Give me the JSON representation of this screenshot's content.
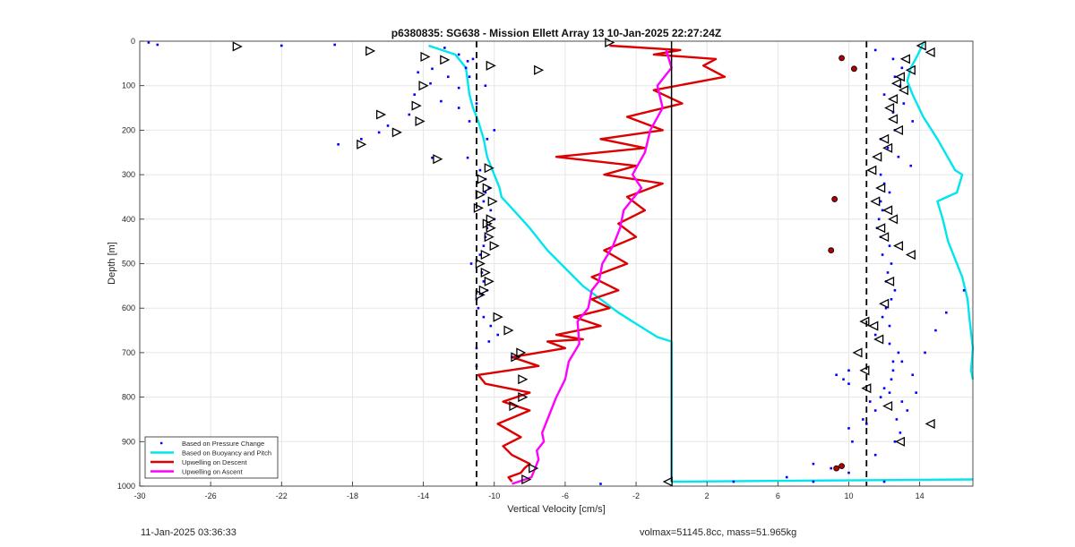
{
  "footer": {
    "timestamp": "11-Jan-2025 03:36:33",
    "volmax_mass": "volmax=51145.8cc, mass=51.965kg"
  },
  "chart_data": {
    "type": "line",
    "title": "p6380835: SG638 - Mission Ellett Array 13 10-Jan-2025 22:27:24Z",
    "xlabel": "Vertical Velocity [cm/s]",
    "ylabel": "Depth [m]",
    "xlim": [
      -30,
      17
    ],
    "ylim": [
      0,
      1000
    ],
    "y_reversed": true,
    "grid": true,
    "xticks": [
      -30,
      -26,
      -22,
      -18,
      -14,
      -10,
      -6,
      -2,
      2,
      6,
      10,
      14
    ],
    "yticks": [
      0,
      100,
      200,
      300,
      400,
      500,
      600,
      700,
      800,
      900,
      1000
    ],
    "legend": {
      "placement": "bottom-left",
      "entries": [
        "Based on Pressure Change",
        "Based on Buoyancy and Pitch",
        "Upwelling on Descent",
        "Upwelling on Ascent"
      ]
    },
    "colors": {
      "pressure": "#0000ff",
      "buoyancy": "#00e5ee",
      "descent": "#dd0000",
      "ascent": "#ff00ff",
      "reference": "#000000"
    },
    "reference_lines": {
      "dashed_x": [
        -11,
        11
      ],
      "solid_x": 0,
      "solid_to_depth": 990
    },
    "series": [
      {
        "name": "Based on Buoyancy and Pitch",
        "style": "line",
        "color": "#00e5ee",
        "x": [
          -13.7,
          -12.2,
          -11.6,
          -11.5,
          -11.4,
          -11.2,
          -10.9,
          -10.6,
          -10.4,
          -10.0,
          -9.7,
          -9.6,
          -8.9,
          -8.0,
          -7.0,
          -6.0,
          -5.0,
          -4.0,
          -3.0,
          -1.8,
          -0.8,
          0,
          0,
          0,
          0,
          17
        ],
        "y": [
          10,
          30,
          60,
          90,
          120,
          150,
          180,
          220,
          260,
          300,
          330,
          350,
          380,
          420,
          470,
          510,
          550,
          580,
          610,
          640,
          665,
          675,
          800,
          980,
          990,
          985
        ]
      },
      {
        "name": "Based on Buoyancy and Pitch (ascent)",
        "style": "line",
        "color": "#00e5ee",
        "x": [
          14.2,
          13.9,
          13.5,
          13.3,
          13.6,
          14.2,
          15.0,
          16.0,
          16.4,
          16.1,
          15.0,
          15.3,
          15.6,
          16.0,
          16.4,
          16.7,
          16.8,
          17.0,
          16.9,
          17.0
        ],
        "y": [
          5,
          30,
          60,
          90,
          120,
          170,
          220,
          290,
          300,
          340,
          360,
          400,
          450,
          490,
          530,
          580,
          620,
          690,
          740,
          760
        ]
      },
      {
        "name": "Upwelling on Descent",
        "style": "line",
        "color": "#dd0000",
        "x": [
          -3.5,
          0.5,
          -1.0,
          2.5,
          1.8,
          3.0,
          -1.0,
          0.6,
          -2.5,
          -0.5,
          -4.0,
          -1.5,
          -6.5,
          -2.0,
          -3.8,
          -0.5,
          -2.5,
          -1.5,
          -3.0,
          -2.0,
          -3.8,
          -2.5,
          -4.5,
          -3.0,
          -4.5,
          -3.5,
          -5.5,
          -4.0,
          -6.5,
          -5.0,
          -7.0,
          -6.0,
          -9.0,
          -7.5,
          -10.9,
          -10.5,
          -8.0,
          -9.5,
          -8.0,
          -9.8,
          -8.5,
          -9.5,
          -9.0,
          -8.0,
          -8.3,
          -8.5,
          -9.2,
          -9.0
        ],
        "y": [
          10,
          20,
          30,
          40,
          55,
          80,
          110,
          140,
          170,
          200,
          220,
          240,
          260,
          280,
          300,
          320,
          350,
          380,
          410,
          440,
          470,
          500,
          530,
          560,
          580,
          600,
          620,
          640,
          660,
          670,
          675,
          690,
          710,
          730,
          750,
          770,
          790,
          810,
          830,
          860,
          890,
          910,
          930,
          950,
          960,
          970,
          980,
          990
        ]
      },
      {
        "name": "Upwelling on Ascent",
        "style": "line",
        "color": "#ff00ff",
        "x": [
          -0.3,
          0.0,
          -0.8,
          -0.5,
          -1.2,
          -1.5,
          -2.2,
          -1.7,
          -2.7,
          -2.9,
          -3.3,
          -3.9,
          -4.1,
          -4.5,
          -4.7,
          -5.3,
          -5.2,
          -5.8,
          -6.0,
          -6.5,
          -6.9,
          -7.3,
          -7.2,
          -7.6,
          -7.5,
          -7.7,
          -7.9,
          -9.0
        ],
        "y": [
          20,
          60,
          100,
          150,
          200,
          250,
          300,
          330,
          380,
          420,
          460,
          500,
          540,
          560,
          600,
          630,
          680,
          720,
          760,
          800,
          840,
          880,
          900,
          920,
          940,
          960,
          980,
          995
        ]
      },
      {
        "name": "Based on Pressure Change",
        "style": "markers",
        "color": "#0000ff",
        "x": [
          -29.5,
          -29.0,
          -22.0,
          -19.0,
          -12.8,
          -12.0,
          -11.5,
          -13.5,
          -14.3,
          -12.6,
          -13.6,
          -12.0,
          -14.5,
          -13.0,
          -12.0,
          -14.8,
          -16.0,
          -16.5,
          -17.5,
          -18.8,
          -13.5,
          -11.2,
          -11.6,
          -11.4,
          -10.5,
          -11.0,
          -11.4,
          -10.0,
          -10.4,
          -11.5,
          -10.8,
          -10.5,
          -10.3,
          -10.5,
          -10.6,
          -10.2,
          -10.0,
          -10.4,
          -10.5,
          -10.6,
          -10.8,
          -11.3,
          -10.7,
          -10.6,
          -10.4,
          -10.7,
          -11.0,
          -10.9,
          -10.6,
          -10.2,
          -9.8,
          -10.3,
          -11.0,
          -9.0,
          -11.0,
          11.5,
          12.5,
          13.0,
          12.6,
          12.9,
          12.0,
          13.1,
          12.5,
          13.6,
          12.6,
          11.8,
          12.2,
          12.8,
          13.5,
          11.8,
          12.0,
          12.3,
          11.8,
          11.9,
          11.7,
          11.6,
          11.8,
          12.3,
          11.9,
          12.4,
          12.2,
          12.1,
          12.6,
          12.4,
          12.1,
          11.9,
          12.3,
          11.5,
          12.3,
          12.8,
          13.0,
          12.5,
          12.4,
          12.0,
          11.8,
          11.2,
          10.0,
          9.3,
          9.7,
          10.0,
          12.3,
          11.5,
          10.8,
          11.0,
          10.0,
          10.2,
          8.0,
          9.0,
          11.5,
          12.6,
          12.9,
          12.7,
          13.3,
          13.0,
          13.8,
          13.6,
          12.5,
          14.3,
          14.9,
          15.5,
          16.5,
          12.0,
          10.0,
          9.3,
          -4.0,
          3.5,
          6.5,
          8.0
        ],
        "y": [
          3,
          8,
          10,
          8,
          15,
          30,
          45,
          62,
          70,
          80,
          95,
          105,
          120,
          135,
          150,
          165,
          190,
          205,
          220,
          232,
          262,
          40,
          60,
          80,
          100,
          140,
          180,
          200,
          220,
          262,
          290,
          310,
          330,
          340,
          360,
          380,
          400,
          420,
          440,
          460,
          480,
          500,
          520,
          540,
          560,
          570,
          580,
          600,
          620,
          640,
          660,
          675,
          690,
          710,
          730,
          20,
          40,
          60,
          80,
          100,
          120,
          140,
          160,
          180,
          200,
          220,
          240,
          260,
          280,
          300,
          320,
          340,
          360,
          380,
          400,
          420,
          440,
          460,
          480,
          500,
          520,
          540,
          560,
          580,
          600,
          620,
          640,
          660,
          680,
          700,
          720,
          740,
          760,
          780,
          800,
          810,
          740,
          750,
          760,
          770,
          790,
          830,
          850,
          860,
          870,
          900,
          950,
          960,
          930,
          900,
          880,
          850,
          830,
          810,
          790,
          750,
          720,
          700,
          650,
          610,
          560,
          990,
          970,
          960,
          995,
          990,
          980,
          990
        ]
      }
    ],
    "markers": {
      "style": "triangle-open",
      "descent_left": {
        "x": [
          -24.5,
          -17.0,
          -13.9,
          -12.8,
          -10.2,
          -7.5,
          -14.0,
          -14.4,
          -16.4,
          -14.2,
          -15.5,
          -17.5,
          -13.2,
          -10.3,
          -10.7,
          -10.4,
          -10.8,
          -10.1,
          -10.9,
          -10.2,
          -10.4,
          -10.2,
          -10.3,
          -10.0,
          -10.5,
          -10.8,
          -10.5,
          -10.3,
          -10.6,
          -10.8,
          -9.8,
          -9.2,
          -8.5,
          -8.8,
          -8.4,
          -8.4,
          -8.9,
          -7.8,
          -8.2,
          -3.5
        ],
        "y": [
          12,
          22,
          35,
          42,
          55,
          65,
          100,
          145,
          165,
          180,
          205,
          232,
          265,
          285,
          310,
          330,
          345,
          360,
          375,
          400,
          410,
          420,
          440,
          460,
          480,
          500,
          520,
          540,
          560,
          570,
          620,
          650,
          700,
          710,
          760,
          800,
          820,
          960,
          985,
          3
        ]
      },
      "ascent_right": {
        "x": [
          -0.2,
          14.1,
          14.6,
          13.2,
          13.5,
          12.9,
          12.7,
          13.1,
          12.5,
          12.3,
          12.5,
          12.8,
          12.0,
          12.2,
          11.6,
          11.3,
          11.8,
          11.5,
          12.2,
          12.5,
          11.8,
          12.0,
          12.8,
          13.5,
          12.3,
          12.0,
          10.9,
          11.4,
          11.7,
          10.5,
          10.9,
          11.0,
          12.2,
          14.6,
          12.9
        ],
        "y": [
          990,
          10,
          25,
          40,
          65,
          80,
          95,
          110,
          130,
          150,
          175,
          200,
          220,
          240,
          260,
          290,
          330,
          360,
          380,
          400,
          420,
          440,
          460,
          480,
          540,
          590,
          630,
          640,
          670,
          700,
          740,
          780,
          820,
          860,
          900
        ]
      }
    },
    "red_points": {
      "x": [
        9.6,
        10.3,
        9.2,
        9.0,
        9.3,
        9.6
      ],
      "y": [
        38,
        62,
        355,
        470,
        960,
        955
      ]
    }
  }
}
